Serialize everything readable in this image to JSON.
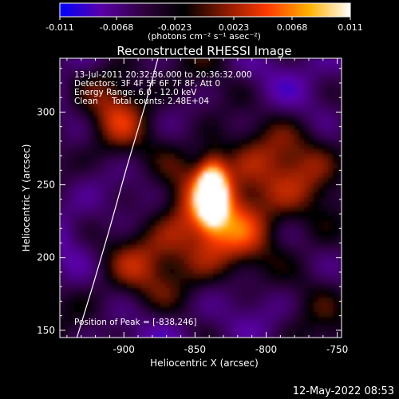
{
  "colorbar": {
    "ticks": [
      "-0.011",
      "-0.0068",
      "-0.0023",
      "0.0023",
      "0.0068",
      "0.011"
    ],
    "unit_label": "(photons cm⁻² s⁻¹ asec⁻²)",
    "colors": [
      "#0000ff",
      "#5a00a8",
      "#300040",
      "#000000",
      "#8a1a00",
      "#ff3a00",
      "#ffb000",
      "#ffffff"
    ]
  },
  "title": "Reconstructed RHESSI Image",
  "info": {
    "line1": "13-Jul-2011 20:32:36.000 to 20:36:32.000",
    "line2": "Detectors: 3F 4F 5F 6F 7F 8F, Att 0",
    "line3": "Energy Range: 6.0 - 12.0 keV",
    "line4_a": "Clean",
    "line4_b": "Total counts: 2.48E+04"
  },
  "peak_text": "Position of Peak = [-838,246]",
  "footer_date": "12-May-2022 08:53",
  "chart_data": {
    "type": "heatmap",
    "title": "Reconstructed RHESSI Image",
    "xlabel": "Heliocentric X (arcsec)",
    "ylabel": "Heliocentric Y (arcsec)",
    "xlim": [
      -945,
      -747
    ],
    "ylim": [
      145,
      337
    ],
    "x_ticks": [
      -900,
      -850,
      -800,
      -750
    ],
    "y_ticks": [
      150,
      200,
      250,
      300
    ],
    "x_tick_labels": [
      "-900",
      "-850",
      "-800",
      "-750"
    ],
    "y_tick_labels": [
      "150",
      "200",
      "250",
      "300"
    ],
    "peak": {
      "x": -838,
      "y": 246
    },
    "value_range": [
      -0.011,
      0.011
    ],
    "limb_curve": [
      [
        -933,
        145
      ],
      [
        -922,
        180
      ],
      [
        -910,
        220
      ],
      [
        -898,
        262
      ],
      [
        -885,
        305
      ],
      [
        -876,
        337
      ]
    ]
  }
}
